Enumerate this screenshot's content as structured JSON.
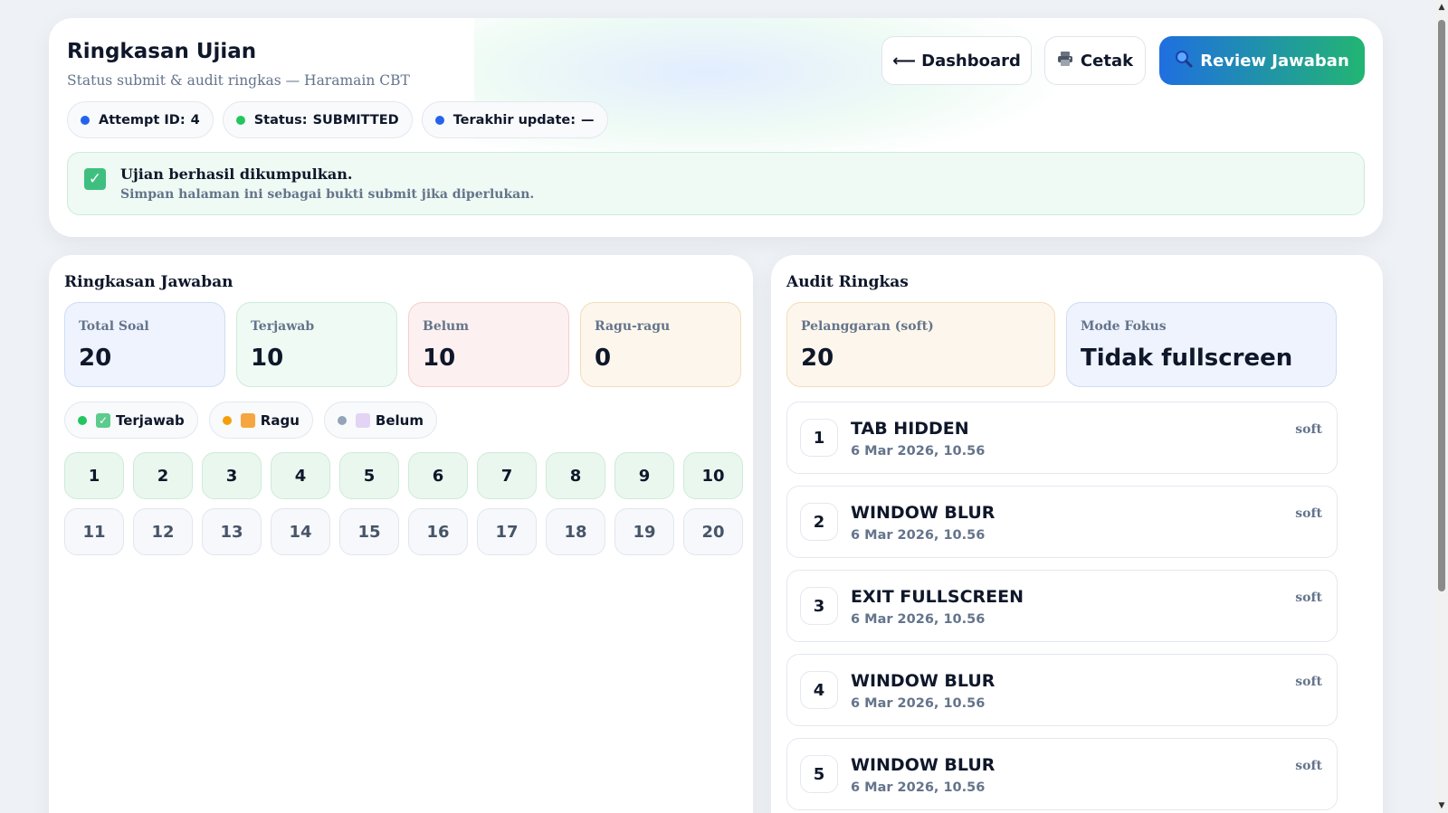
{
  "header": {
    "title": "Ringkasan Ujian",
    "subtitle": "Status submit & audit ringkas — Haramain CBT",
    "buttons": {
      "dashboard": "⟵ Dashboard",
      "print": "Cetak",
      "review": "Review Jawaban"
    },
    "chips": [
      {
        "label": "Attempt ID:",
        "value": "4"
      },
      {
        "label": "Status:",
        "value": "SUBMITTED"
      },
      {
        "label": "Terakhir update:",
        "value": "—"
      }
    ],
    "alert": {
      "title": "Ujian berhasil dikumpulkan.",
      "text": "Simpan halaman ini sebagai bukti submit jika diperlukan."
    }
  },
  "summary": {
    "title": "Ringkasan Jawaban",
    "stats": [
      {
        "label": "Total Soal",
        "value": "20"
      },
      {
        "label": "Terjawab",
        "value": "10"
      },
      {
        "label": "Belum",
        "value": "10"
      },
      {
        "label": "Ragu-ragu",
        "value": "0"
      }
    ],
    "legend": {
      "answered": "Terjawab",
      "doubt": "Ragu",
      "blank": "Belum"
    },
    "questions": [
      "1",
      "2",
      "3",
      "4",
      "5",
      "6",
      "7",
      "8",
      "9",
      "10",
      "11",
      "12",
      "13",
      "14",
      "15",
      "16",
      "17",
      "18",
      "19",
      "20"
    ],
    "answered_count": 10
  },
  "audit": {
    "title": "Audit Ringkas",
    "stats": [
      {
        "label": "Pelanggaran (soft)",
        "value": "20"
      },
      {
        "label": "Mode Fokus",
        "value": "Tidak fullscreen"
      }
    ],
    "items": [
      {
        "num": "1",
        "type": "TAB HIDDEN",
        "time": "6 Mar 2026, 10.56",
        "severity": "soft"
      },
      {
        "num": "2",
        "type": "WINDOW BLUR",
        "time": "6 Mar 2026, 10.56",
        "severity": "soft"
      },
      {
        "num": "3",
        "type": "EXIT FULLSCREEN",
        "time": "6 Mar 2026, 10.56",
        "severity": "soft"
      },
      {
        "num": "4",
        "type": "WINDOW BLUR",
        "time": "6 Mar 2026, 10.56",
        "severity": "soft"
      },
      {
        "num": "5",
        "type": "WINDOW BLUR",
        "time": "6 Mar 2026, 10.56",
        "severity": "soft"
      }
    ]
  },
  "colors": {
    "primary": "#1f6fe0",
    "success": "#22c55e",
    "warning": "#f59e0b"
  }
}
